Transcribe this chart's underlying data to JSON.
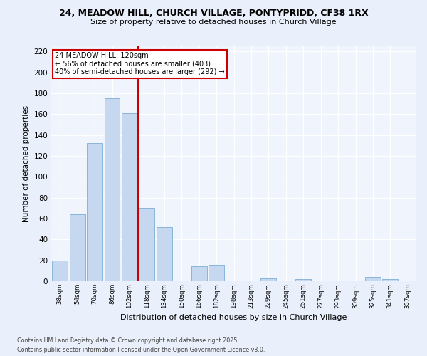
{
  "title1": "24, MEADOW HILL, CHURCH VILLAGE, PONTYPRIDD, CF38 1RX",
  "title2": "Size of property relative to detached houses in Church Village",
  "xlabel": "Distribution of detached houses by size in Church Village",
  "ylabel": "Number of detached properties",
  "categories": [
    "38sqm",
    "54sqm",
    "70sqm",
    "86sqm",
    "102sqm",
    "118sqm",
    "134sqm",
    "150sqm",
    "166sqm",
    "182sqm",
    "198sqm",
    "213sqm",
    "229sqm",
    "245sqm",
    "261sqm",
    "277sqm",
    "293sqm",
    "309sqm",
    "325sqm",
    "341sqm",
    "357sqm"
  ],
  "values": [
    20,
    64,
    132,
    175,
    161,
    70,
    52,
    0,
    14,
    16,
    0,
    0,
    3,
    0,
    2,
    0,
    0,
    0,
    4,
    2,
    1
  ],
  "bar_color": "#c5d8f0",
  "bar_edge_color": "#7aadd4",
  "vline_color": "#cc0000",
  "vline_pos": 4.5,
  "annotation_text": "24 MEADOW HILL: 120sqm\n← 56% of detached houses are smaller (403)\n40% of semi-detached houses are larger (292) →",
  "annotation_box_color": "#ffffff",
  "annotation_box_edge": "#cc0000",
  "ylim": [
    0,
    225
  ],
  "yticks": [
    0,
    20,
    40,
    60,
    80,
    100,
    120,
    140,
    160,
    180,
    200,
    220
  ],
  "footer1": "Contains HM Land Registry data © Crown copyright and database right 2025.",
  "footer2": "Contains public sector information licensed under the Open Government Licence v3.0.",
  "bg_color": "#eaf0fb",
  "plot_bg_color": "#f0f4fc"
}
